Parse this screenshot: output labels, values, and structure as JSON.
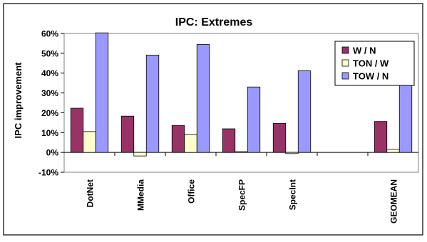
{
  "chart_data": {
    "type": "bar",
    "title": "IPC: Extremes",
    "xlabel": "",
    "ylabel": "IPC improvement",
    "ylim": [
      -10,
      60
    ],
    "yticks": [
      -10,
      0,
      10,
      20,
      30,
      40,
      50,
      60
    ],
    "ytick_labels": [
      "-10%",
      "0%",
      "10%",
      "20%",
      "30%",
      "40%",
      "50%",
      "60%"
    ],
    "grid": false,
    "legend_position": "top-right",
    "categories": [
      "DotNet",
      "MMedia",
      "Office",
      "SpecFP",
      "SpecInt",
      "",
      "GEOMEAN"
    ],
    "series": [
      {
        "name": "W / N",
        "color": "#993366",
        "values": [
          22.3,
          18.3,
          13.6,
          11.9,
          14.6,
          null,
          15.6
        ]
      },
      {
        "name": "TON / W",
        "color": "#ffffcc",
        "values": [
          10.5,
          -1.8,
          9.1,
          0.4,
          -0.6,
          null,
          1.6
        ]
      },
      {
        "name": "TOW / N",
        "color": "#9999ff",
        "values": [
          60.3,
          49.1,
          54.5,
          33.0,
          41.2,
          null,
          44.8
        ]
      }
    ]
  }
}
